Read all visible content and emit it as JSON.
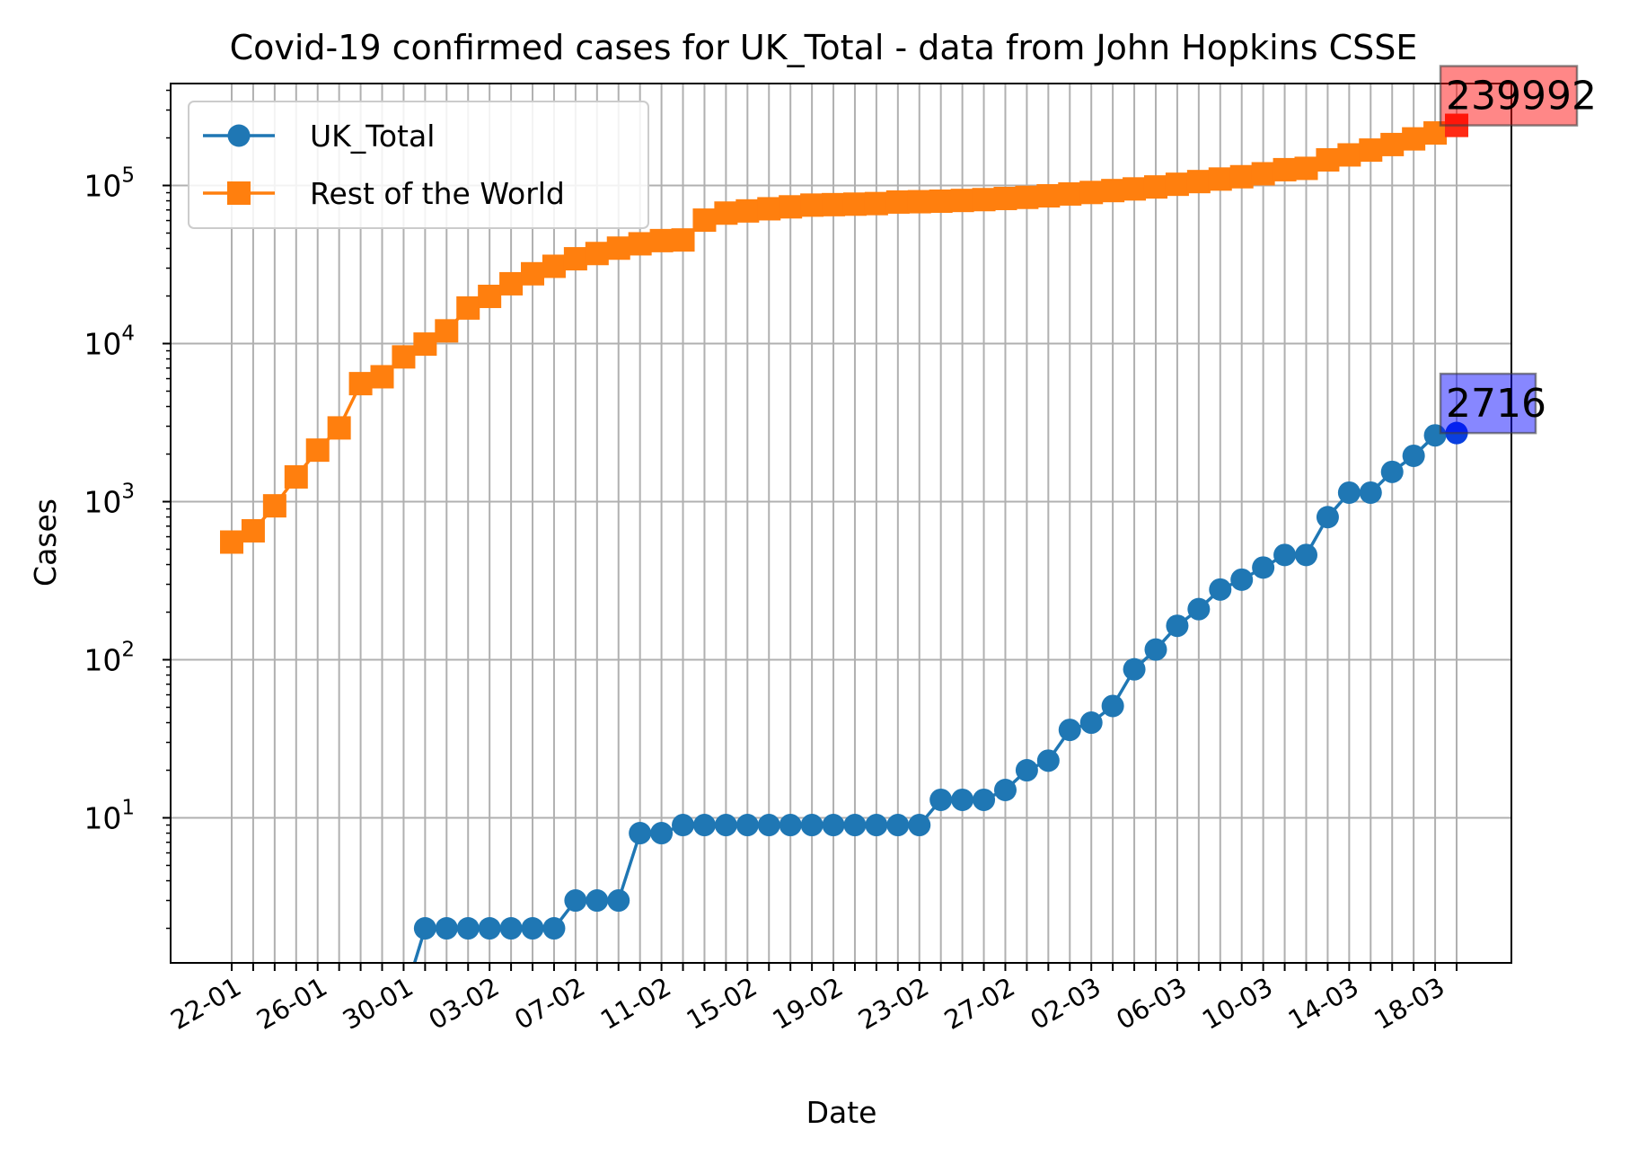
{
  "chart_data": {
    "type": "line",
    "title": "Covid-19 confirmed cases for UK_Total - data from John Hopkins CSSE",
    "xlabel": "Date",
    "ylabel": "Cases",
    "yscale": "log",
    "ylim": [
      1.3,
      430000
    ],
    "grid": true,
    "legend_position": "top-left",
    "y_tick_labels": [
      {
        "base": "10",
        "exp": "1",
        "value": 10
      },
      {
        "base": "10",
        "exp": "2",
        "value": 100
      },
      {
        "base": "10",
        "exp": "3",
        "value": 1000
      },
      {
        "base": "10",
        "exp": "4",
        "value": 10000
      },
      {
        "base": "10",
        "exp": "5",
        "value": 100000
      }
    ],
    "x_tick_labels": [
      "22-01",
      "26-01",
      "30-01",
      "03-02",
      "07-02",
      "11-02",
      "15-02",
      "19-02",
      "23-02",
      "27-02",
      "02-03",
      "06-03",
      "10-03",
      "14-03",
      "18-03"
    ],
    "x_tick_label_index_step": 4,
    "x": [
      "22-01",
      "23-01",
      "24-01",
      "25-01",
      "26-01",
      "27-01",
      "28-01",
      "29-01",
      "30-01",
      "31-01",
      "01-02",
      "02-02",
      "03-02",
      "04-02",
      "05-02",
      "06-02",
      "07-02",
      "08-02",
      "09-02",
      "10-02",
      "11-02",
      "12-02",
      "13-02",
      "14-02",
      "15-02",
      "16-02",
      "17-02",
      "18-02",
      "19-02",
      "20-02",
      "21-02",
      "22-02",
      "23-02",
      "24-02",
      "25-02",
      "26-02",
      "27-02",
      "28-02",
      "29-02",
      "01-03",
      "02-03",
      "03-03",
      "04-03",
      "05-03",
      "06-03",
      "07-03",
      "08-03",
      "09-03",
      "10-03",
      "11-03",
      "12-03",
      "13-03",
      "14-03",
      "15-03",
      "16-03",
      "17-03",
      "18-03",
      "19-03"
    ],
    "series": [
      {
        "name": "UK_Total",
        "color": "#1f77b4",
        "marker": "circle",
        "values": [
          0,
          0,
          0,
          0,
          0,
          0,
          0,
          0,
          0,
          2,
          2,
          2,
          2,
          2,
          2,
          2,
          3,
          3,
          3,
          8,
          8,
          9,
          9,
          9,
          9,
          9,
          9,
          9,
          9,
          9,
          9,
          9,
          9,
          13,
          13,
          13,
          15,
          20,
          23,
          36,
          40,
          51,
          87,
          116,
          164,
          209,
          278,
          321,
          383,
          460,
          460,
          798,
          1140,
          1140,
          1543,
          1950,
          2626,
          2716
        ]
      },
      {
        "name": "Rest of the World",
        "color": "#ff7f0e",
        "marker": "square",
        "values": [
          555,
          654,
          941,
          1434,
          2118,
          2927,
          5578,
          6166,
          8234,
          9925,
          12036,
          16787,
          19881,
          23892,
          27635,
          30817,
          34391,
          37120,
          40150,
          42762,
          44802,
          45221,
          60368,
          66885,
          69030,
          71224,
          73258,
          75136,
          75639,
          76197,
          76819,
          78572,
          78958,
          79561,
          80406,
          81388,
          82746,
          84112,
          86011,
          88369,
          90306,
          92840,
          95120,
          97886,
          101784,
          105835,
          109821,
          113590,
          118582,
          125865,
          128343,
          145193,
          156099,
          167447,
          181546,
          197142,
          214910,
          239992
        ]
      }
    ],
    "annotations": [
      {
        "text": "239992",
        "series": "Rest of the World",
        "box_color": "#ff0000"
      },
      {
        "text": "2716",
        "series": "UK_Total",
        "box_color": "#0000ff"
      }
    ],
    "last_point_markers": [
      {
        "series": "Rest of the World",
        "color": "#ff2a14"
      },
      {
        "series": "UK_Total",
        "color": "#0a3fe0"
      }
    ]
  }
}
